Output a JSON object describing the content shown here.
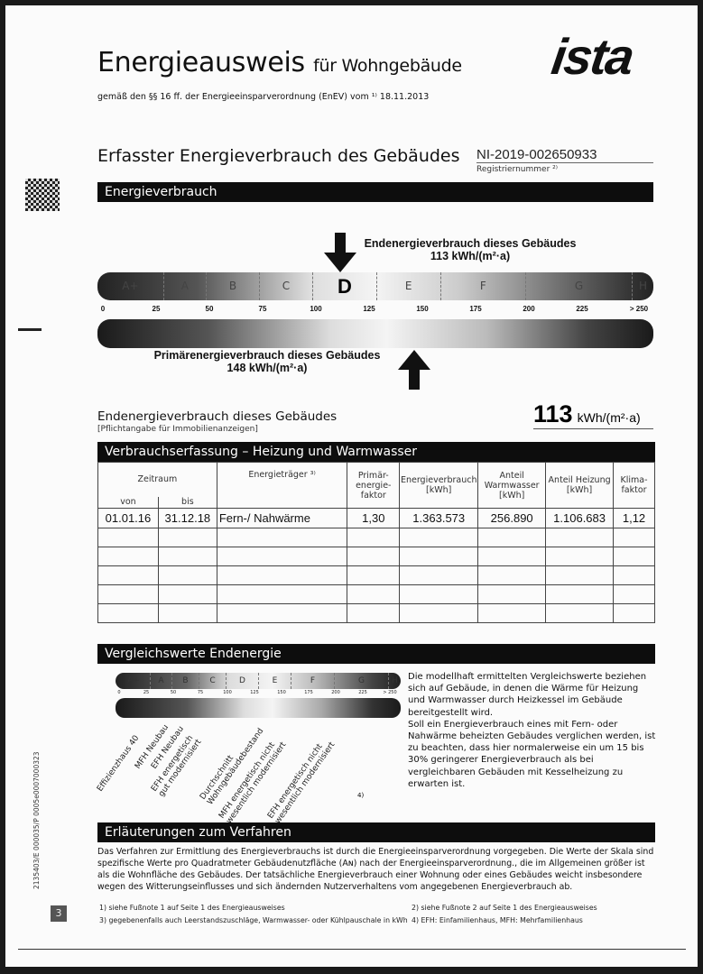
{
  "header": {
    "title": "Energieausweis",
    "title_suffix": "für Wohngebäude",
    "subtitle": "gemäß den §§ 16 ff. der Energieeinsparverordnung (EnEV) vom ¹⁾ 18.11.2013",
    "logo": "ista"
  },
  "section_title": "Erfasster Energieverbrauch des Gebäudes",
  "registration": {
    "number": "NI-2019-002650933",
    "label": "Registriernummer ²⁾"
  },
  "energieverbrauch": {
    "bar_title": "Energieverbrauch",
    "end_label": "Endenergieverbrauch dieses Gebäudes",
    "end_value": "113 kWh/(m²·a)",
    "end_numeric": 113,
    "prim_label": "Primärenergieverbrauch dieses Gebäudes",
    "prim_value": "148 kWh/(m²·a)",
    "prim_numeric": 148,
    "active_class": "D",
    "classes": [
      {
        "label": "A+",
        "from": 0,
        "to": 30
      },
      {
        "label": "A",
        "from": 30,
        "to": 50
      },
      {
        "label": "B",
        "from": 50,
        "to": 75
      },
      {
        "label": "C",
        "from": 75,
        "to": 100
      },
      {
        "label": "D",
        "from": 100,
        "to": 130
      },
      {
        "label": "E",
        "from": 130,
        "to": 160
      },
      {
        "label": "F",
        "from": 160,
        "to": 200
      },
      {
        "label": "G",
        "from": 200,
        "to": 250
      },
      {
        "label": "H",
        "from": 250,
        "to": 260
      }
    ],
    "ticks": [
      "0",
      "25",
      "50",
      "75",
      "100",
      "125",
      "150",
      "175",
      "200",
      "225",
      "> 250"
    ]
  },
  "pflicht": {
    "label": "Endenergieverbrauch dieses Gebäudes",
    "note": "[Pflichtangabe für Immobilienanzeigen]",
    "value": "113",
    "unit": "kWh/(m²·a)"
  },
  "verbrauch": {
    "bar_title": "Verbrauchserfassung – Heizung und Warmwasser",
    "headers": {
      "zeitraum": "Zeitraum",
      "von": "von",
      "bis": "bis",
      "traeger": "Energieträger ³⁾",
      "faktor": "Primär-energie-faktor",
      "verbrauch": "Energieverbrauch [kWh]",
      "warmwasser": "Anteil Warmwasser [kWh]",
      "heizung": "Anteil Heizung [kWh]",
      "klima": "Klima-faktor"
    },
    "rows": [
      [
        "01.01.16",
        "31.12.18",
        "Fern-/ Nahwärme",
        "1,30",
        "1.363.573",
        "256.890",
        "1.106.683",
        "1,12"
      ],
      [
        "",
        "",
        "",
        "",
        "",
        "",
        "",
        ""
      ],
      [
        "",
        "",
        "",
        "",
        "",
        "",
        "",
        ""
      ],
      [
        "",
        "",
        "",
        "",
        "",
        "",
        "",
        ""
      ],
      [
        "",
        "",
        "",
        "",
        "",
        "",
        "",
        ""
      ],
      [
        "",
        "",
        "",
        "",
        "",
        "",
        "",
        ""
      ]
    ]
  },
  "vergleich": {
    "bar_title": "Vergleichswerte Endenergie",
    "mini_classes": [
      "A+",
      "A",
      "B",
      "C",
      "D",
      "E",
      "F",
      "G",
      "H"
    ],
    "mini_ticks": [
      "0",
      "25",
      "50",
      "75",
      "100",
      "125",
      "150",
      "175",
      "200",
      "225",
      "> 250"
    ],
    "labels": [
      {
        "text": "Effizienzhaus 40",
        "value": 25
      },
      {
        "text": "MFH Neubau",
        "value": 45
      },
      {
        "text": "EFH Neubau",
        "value": 60
      },
      {
        "text": "EFH energetisch\ngut modernisiert",
        "value": 80
      },
      {
        "text": "Durchschnitt\nWohngebäudebestand",
        "value": 130
      },
      {
        "text": "MFH energetisch nicht\nwesentlich modernisiert",
        "value": 160
      },
      {
        "text": "EFH energetisch nicht\nwesentlich modernisiert",
        "value": 205
      }
    ],
    "footnote_ref": "4)",
    "text": "Die modellhaft ermittelten Vergleichswerte beziehen sich auf Gebäude, in denen die Wärme für Heizung und Warmwasser durch Heizkessel im Gebäude bereitgestellt wird.",
    "text2": "Soll ein Energieverbrauch eines mit Fern- oder Nahwärme beheizten Gebäudes verglichen werden, ist zu beachten, dass hier normalerweise ein um 15 bis 30% geringerer Energieverbrauch als bei vergleichbaren Gebäuden mit Kesselheizung zu erwarten ist."
  },
  "erlaeuterung": {
    "bar_title": "Erläuterungen zum Verfahren",
    "text": "Das Verfahren zur Ermittlung des Energieverbrauchs ist durch die Energieeinsparverordnung vorgegeben. Die Werte der Skala sind spezifische Werte pro Quadratmeter Gebäudenutzfläche (Aɴ) nach der Energieeinsparverordnung., die im Allgemeinen größer ist als die Wohnfläche des Gebäudes. Der tatsächliche Energieverbrauch einer Wohnung oder eines Gebäudes weicht insbesondere wegen des Witterungseinflusses und sich ändernden Nutzerverhaltens vom angegebenen Energieverbrauch ab."
  },
  "footnotes": [
    "1) siehe Fußnote 1 auf Seite 1 des Energieausweises",
    "2) siehe Fußnote 2 auf Seite 1 des Energieausweises",
    "3) gegebenenfalls auch Leerstandszuschläge, Warmwasser- oder Kühlpauschale in kWh",
    "4) EFH: Einfamilienhaus, MFH: Mehrfamilienhaus"
  ],
  "side": {
    "code": "2135403/E 000035/P 0005e0007000323",
    "page_number": "3"
  }
}
